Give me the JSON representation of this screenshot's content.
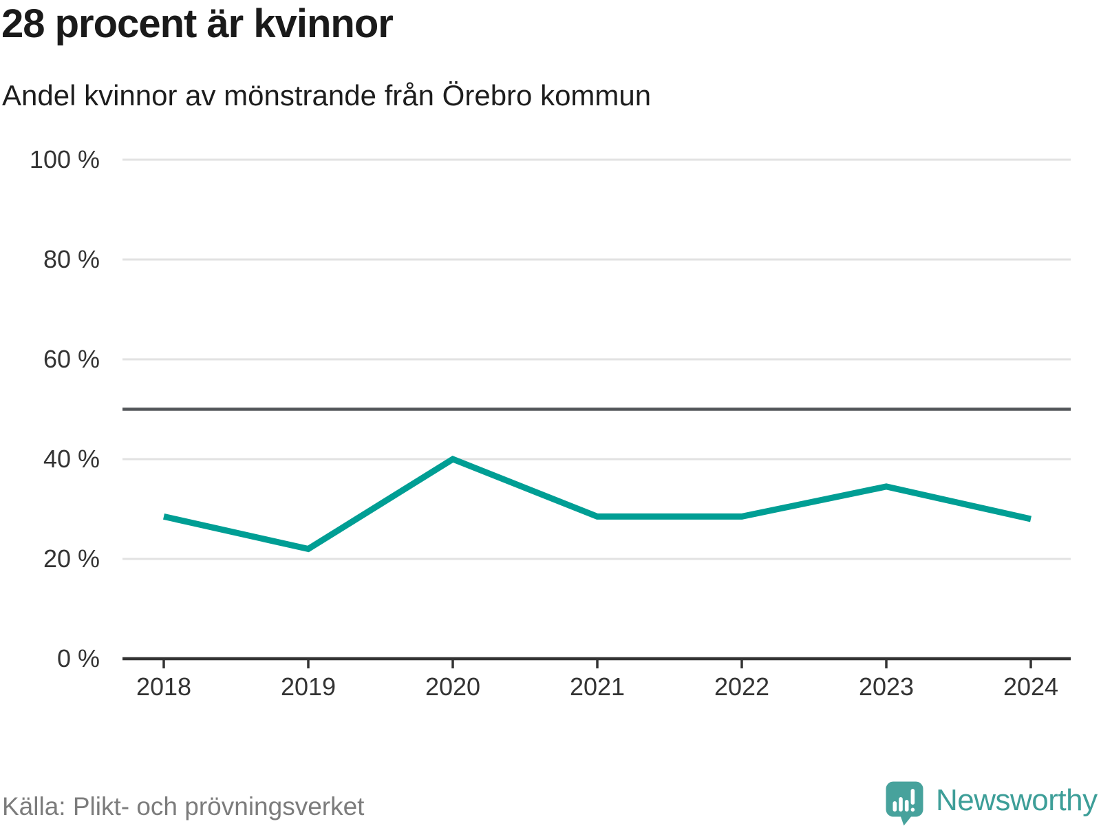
{
  "header": {
    "title": "28 procent är kvinnor",
    "subtitle": "Andel kvinnor av mönstrande från Örebro kommun"
  },
  "footer": {
    "source": "Källa: Plikt- och prövningsverket",
    "brand": "Newsworthy"
  },
  "colors": {
    "line": "#009e94",
    "grid": "#e2e2e2",
    "reference": "#53565a",
    "axis": "#333333",
    "tick-label": "#333333",
    "title-text": "#1a1a1a",
    "subtitle-text": "#1d1d1d",
    "source-text": "#7c7c7c",
    "brand-text": "#3d9e98",
    "brand-icon": "#47a29c"
  },
  "chart_data": {
    "type": "line",
    "title": "28 procent är kvinnor",
    "subtitle": "Andel kvinnor av mönstrande från Örebro kommun",
    "x": [
      "2018",
      "2019",
      "2020",
      "2021",
      "2022",
      "2023",
      "2024"
    ],
    "values": [
      28.5,
      22,
      40,
      28.5,
      28.5,
      34.5,
      28
    ],
    "ylim": [
      0,
      100
    ],
    "yticks": [
      0,
      20,
      40,
      60,
      80,
      100
    ],
    "ytick_labels": [
      "0 %",
      "20 %",
      "40 %",
      "60 %",
      "80 %",
      "100 %"
    ],
    "ytick_suffix": " %",
    "reference_line": 50,
    "grid": "horizontal",
    "legend": "none",
    "xlabel": "",
    "ylabel": ""
  }
}
